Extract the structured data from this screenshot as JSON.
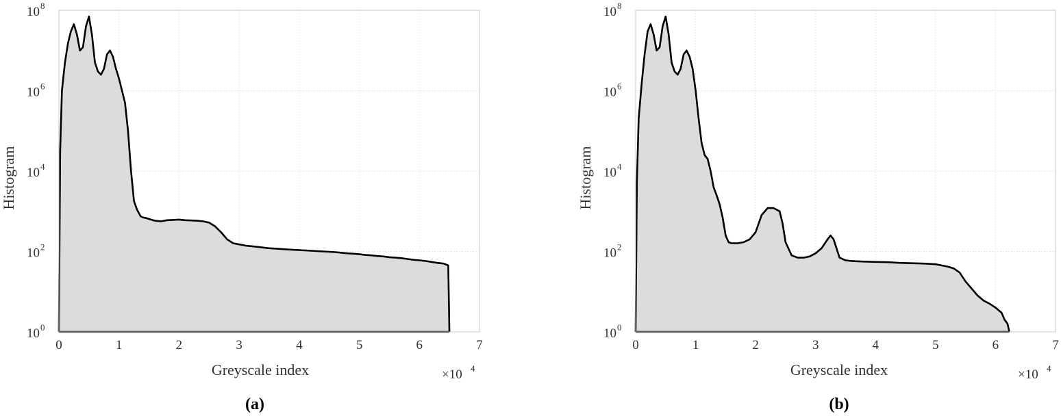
{
  "colors": {
    "fill": "#dcdcdc",
    "line": "#000000",
    "grid": "#e6e6e6",
    "frame": "#c8c8c8",
    "text": "#333333"
  },
  "chart_data": [
    {
      "type": "area",
      "panel_label": "(a)",
      "xlabel": "Greyscale index",
      "ylabel": "Histogram",
      "x_multiplier": "×10",
      "x_multiplier_exp": "4",
      "xlim": [
        0,
        70000
      ],
      "ylim": [
        1,
        100000000
      ],
      "yscale": "log",
      "grid": true,
      "x_ticks": [
        "0",
        "1",
        "2",
        "3",
        "4",
        "5",
        "6",
        "7"
      ],
      "y_ticks": [
        {
          "base": "10",
          "exp": "0"
        },
        {
          "base": "10",
          "exp": "2"
        },
        {
          "base": "10",
          "exp": "4"
        },
        {
          "base": "10",
          "exp": "6"
        },
        {
          "base": "10",
          "exp": "8"
        }
      ],
      "series": [
        {
          "x": [
            0,
            200,
            500,
            1000,
            1500,
            2000,
            2500,
            3000,
            3500,
            4000,
            4500,
            5000,
            5500,
            6000,
            6500,
            7000,
            7500,
            8000,
            8500,
            9000,
            9500,
            10000,
            10500,
            11000,
            11500,
            12000,
            12500,
            13000,
            13300,
            13600,
            14000,
            14500,
            15000,
            16000,
            17000,
            18000,
            19000,
            20000,
            21000,
            22000,
            23000,
            24000,
            25000,
            26000,
            27000,
            28000,
            29000,
            30000,
            31000,
            32000,
            33000,
            34000,
            35000,
            36000,
            37000,
            38000,
            39000,
            40000,
            41000,
            42000,
            43000,
            44000,
            45000,
            46000,
            47000,
            48000,
            49000,
            50000,
            51000,
            52000,
            53000,
            54000,
            55000,
            56000,
            57000,
            58000,
            59000,
            60000,
            61000,
            62000,
            63000,
            64000,
            64800,
            65000
          ],
          "y": [
            1,
            30000,
            1000000,
            5000000,
            15000000,
            30000000,
            45000000,
            25000000,
            10000000,
            12000000,
            40000000,
            70000000,
            25000000,
            5000000,
            3000000,
            2500000,
            3500000,
            8000000,
            10000000,
            7000000,
            3500000,
            2000000,
            1000000,
            500000,
            100000,
            10000,
            1800,
            1100,
            900,
            750,
            700,
            680,
            640,
            580,
            560,
            600,
            610,
            620,
            600,
            590,
            580,
            560,
            520,
            420,
            300,
            200,
            160,
            150,
            140,
            135,
            130,
            125,
            120,
            118,
            115,
            112,
            110,
            108,
            106,
            104,
            102,
            100,
            98,
            96,
            93,
            90,
            88,
            85,
            82,
            80,
            77,
            75,
            72,
            70,
            68,
            65,
            62,
            60,
            58,
            55,
            52,
            50,
            45,
            1
          ]
        }
      ]
    },
    {
      "type": "area",
      "panel_label": "(b)",
      "xlabel": "Greyscale index",
      "ylabel": "Histogram",
      "x_multiplier": "×10",
      "x_multiplier_exp": "4",
      "xlim": [
        0,
        70000
      ],
      "ylim": [
        1,
        100000000
      ],
      "yscale": "log",
      "grid": true,
      "x_ticks": [
        "0",
        "1",
        "2",
        "3",
        "4",
        "5",
        "6",
        "7"
      ],
      "y_ticks": [
        {
          "base": "10",
          "exp": "0"
        },
        {
          "base": "10",
          "exp": "2"
        },
        {
          "base": "10",
          "exp": "4"
        },
        {
          "base": "10",
          "exp": "6"
        },
        {
          "base": "10",
          "exp": "8"
        }
      ],
      "series": [
        {
          "x": [
            0,
            200,
            500,
            1000,
            1500,
            2000,
            2500,
            3000,
            3500,
            4000,
            4500,
            5000,
            5500,
            6000,
            6500,
            7000,
            7500,
            8000,
            8500,
            9000,
            9500,
            10000,
            10500,
            11000,
            11500,
            12000,
            12500,
            13000,
            13500,
            14000,
            14500,
            15000,
            15500,
            16000,
            17000,
            18000,
            19000,
            20000,
            21000,
            22000,
            23000,
            24000,
            24500,
            25000,
            26000,
            27000,
            28000,
            29000,
            30000,
            31000,
            32000,
            32500,
            33000,
            34000,
            35000,
            36000,
            38000,
            40000,
            42000,
            44000,
            46000,
            48000,
            50000,
            51000,
            52000,
            53000,
            54000,
            55000,
            56000,
            57000,
            58000,
            59000,
            60000,
            61000,
            61500,
            62000,
            62300
          ],
          "y": [
            1,
            5000,
            200000,
            1500000,
            8000000,
            30000000,
            45000000,
            25000000,
            10000000,
            12000000,
            40000000,
            70000000,
            25000000,
            5000000,
            3000000,
            2500000,
            3500000,
            8000000,
            10000000,
            7000000,
            3500000,
            1000000,
            200000,
            50000,
            25000,
            20000,
            10000,
            4000,
            2500,
            1500,
            700,
            250,
            170,
            160,
            160,
            170,
            200,
            300,
            800,
            1200,
            1200,
            1000,
            500,
            170,
            80,
            70,
            70,
            75,
            90,
            120,
            200,
            250,
            200,
            70,
            60,
            58,
            56,
            55,
            54,
            52,
            51,
            50,
            48,
            45,
            42,
            38,
            30,
            18,
            12,
            8,
            6,
            5,
            4,
            3,
            2,
            1.6,
            1
          ]
        }
      ]
    }
  ]
}
